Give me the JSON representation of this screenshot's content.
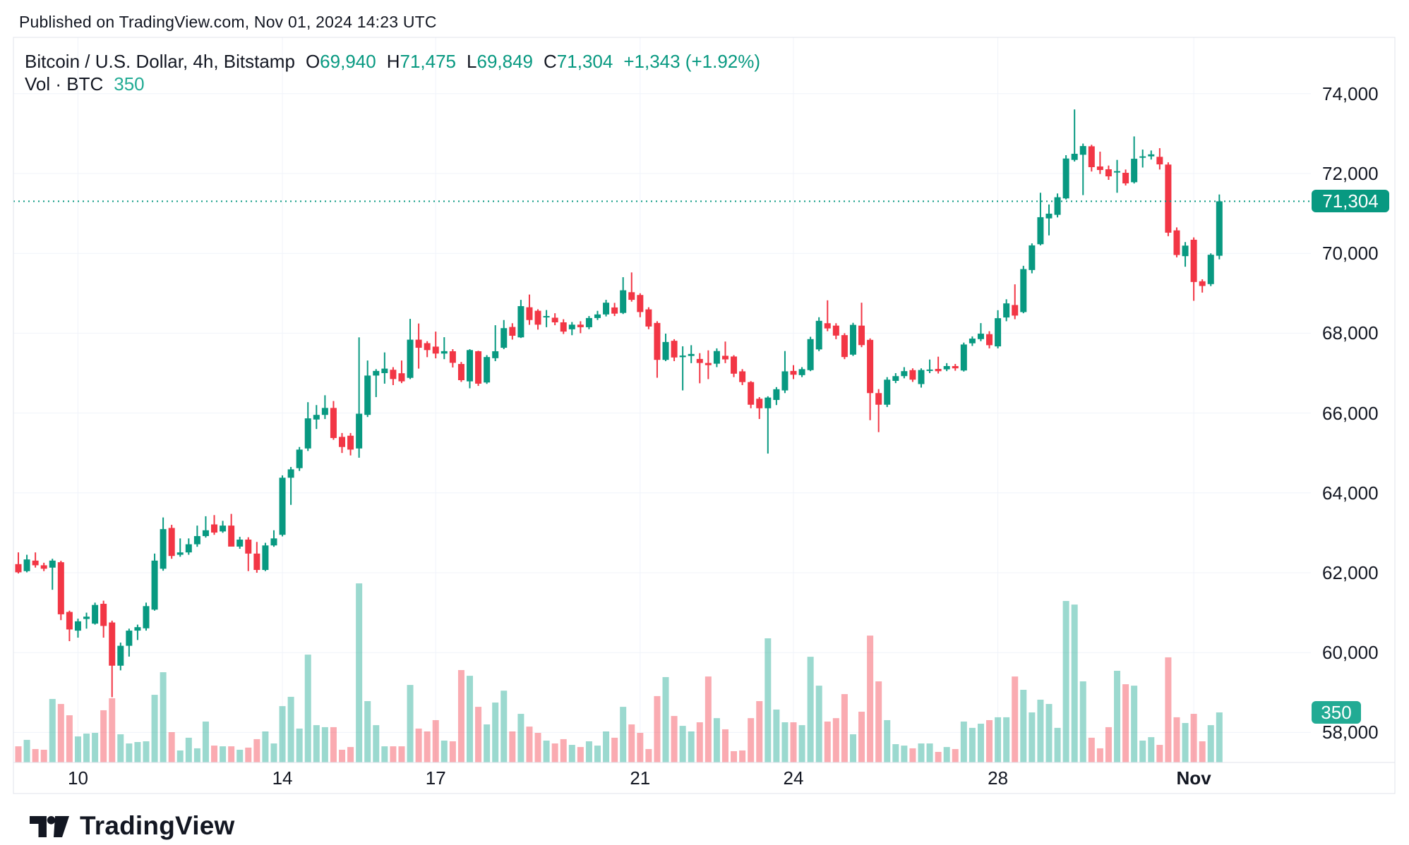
{
  "header": {
    "published_line": "Published on TradingView.com, Nov 01, 2024 14:23 UTC"
  },
  "legend": {
    "title": "Bitcoin / U.S. Dollar, 4h, Bitstamp",
    "o_label": "O",
    "o_value": "69,940",
    "h_label": "H",
    "h_value": "71,475",
    "l_label": "L",
    "l_value": "69,849",
    "c_label": "C",
    "c_value": "71,304",
    "change": "+1,343 (+1.92%)",
    "vol_label": "Vol · BTC",
    "vol_value": "350"
  },
  "axis_badges": {
    "price": "71,304",
    "volume": "350"
  },
  "footer": {
    "brand": "TradingView"
  },
  "theme": {
    "up": "#089981",
    "down": "#F23645",
    "up_volume": "rgba(34,171,148,0.45)",
    "down_volume": "rgba(242,54,69,0.42)",
    "grid": "#F0F3FA",
    "frame": "#E0E3EB",
    "text": "#131722",
    "price_line": "#089981",
    "volume_accent": "#22ab94"
  },
  "chart_data": {
    "type": "candlestick+volume",
    "title": "Bitcoin / U.S. Dollar",
    "interval": "4h",
    "exchange": "Bitstamp",
    "last_price": 71304,
    "last_volume_btc": 350,
    "price_axis": {
      "min": 57000,
      "max": 74600,
      "ticks": [
        {
          "value": 74000,
          "label": "74,000"
        },
        {
          "value": 72000,
          "label": "72,000"
        },
        {
          "value": 70000,
          "label": "70,000"
        },
        {
          "value": 68000,
          "label": "68,000"
        },
        {
          "value": 66000,
          "label": "66,000"
        },
        {
          "value": 64000,
          "label": "64,000"
        },
        {
          "value": 62000,
          "label": "62,000"
        },
        {
          "value": 60000,
          "label": "60,000"
        },
        {
          "value": 58000,
          "label": "58,000"
        }
      ]
    },
    "time_axis": {
      "ticks": [
        {
          "label": "10",
          "candle_index": 7,
          "bold": false
        },
        {
          "label": "14",
          "candle_index": 31,
          "bold": false
        },
        {
          "label": "17",
          "candle_index": 49,
          "bold": false
        },
        {
          "label": "21",
          "candle_index": 73,
          "bold": false
        },
        {
          "label": "24",
          "candle_index": 91,
          "bold": false
        },
        {
          "label": "28",
          "candle_index": 115,
          "bold": false
        },
        {
          "label": "Nov",
          "candle_index": 138,
          "bold": true
        }
      ]
    },
    "candles_format": [
      "open",
      "high",
      "low",
      "close",
      "volume_btc"
    ],
    "candles": [
      [
        62216,
        62510,
        61982,
        62011,
        113
      ],
      [
        62040,
        62450,
        62010,
        62333,
        158
      ],
      [
        62304,
        62509,
        62129,
        62187,
        94
      ],
      [
        62187,
        62250,
        62040,
        62100,
        89
      ],
      [
        62128,
        62350,
        61573,
        62304,
        444
      ],
      [
        62263,
        62300,
        60813,
        60959,
        409
      ],
      [
        61018,
        61050,
        60286,
        60579,
        330
      ],
      [
        60549,
        60850,
        60374,
        60783,
        182
      ],
      [
        60842,
        61000,
        60600,
        60900,
        202
      ],
      [
        60725,
        61251,
        60700,
        61193,
        207
      ],
      [
        61222,
        61300,
        60374,
        60667,
        365
      ],
      [
        60754,
        60800,
        58883,
        59672,
        449
      ],
      [
        59672,
        60250,
        59555,
        60170,
        197
      ],
      [
        60170,
        60600,
        59900,
        60550,
        133
      ],
      [
        60550,
        60700,
        60315,
        60637,
        143
      ],
      [
        60608,
        61251,
        60550,
        61164,
        148
      ],
      [
        61076,
        62480,
        61050,
        62304,
        473
      ],
      [
        62100,
        63385,
        62050,
        63093,
        631
      ],
      [
        63122,
        63200,
        62350,
        62420,
        212
      ],
      [
        62450,
        62860,
        62400,
        62509,
        84
      ],
      [
        62509,
        62860,
        62450,
        62713,
        173
      ],
      [
        62713,
        63181,
        62650,
        62918,
        99
      ],
      [
        62918,
        63415,
        62880,
        63064,
        286
      ],
      [
        63210,
        63444,
        62950,
        63006,
        118
      ],
      [
        63035,
        63300,
        63000,
        63181,
        113
      ],
      [
        63181,
        63474,
        62950,
        62655,
        113
      ],
      [
        62655,
        62900,
        62600,
        62830,
        89
      ],
      [
        62830,
        62889,
        62041,
        62480,
        104
      ],
      [
        62480,
        62772,
        62000,
        62070,
        163
      ],
      [
        62070,
        62750,
        62041,
        62684,
        217
      ],
      [
        62684,
        63064,
        62650,
        62860,
        133
      ],
      [
        62950,
        64439,
        62910,
        64380,
        394
      ],
      [
        64380,
        64650,
        63700,
        64590,
        459
      ],
      [
        64620,
        65150,
        64550,
        65084,
        237
      ],
      [
        65113,
        66272,
        65050,
        65867,
        754
      ],
      [
        65838,
        66200,
        65600,
        65954,
        261
      ],
      [
        65954,
        66446,
        65850,
        66128,
        247
      ],
      [
        66128,
        66301,
        65330,
        65374,
        247
      ],
      [
        65403,
        65500,
        65000,
        65150,
        89
      ],
      [
        65432,
        65500,
        64939,
        65084,
        108
      ],
      [
        65113,
        67896,
        64881,
        65983,
        1252
      ],
      [
        65954,
        67316,
        65900,
        66939,
        429
      ],
      [
        66939,
        67100,
        66400,
        67055,
        261
      ],
      [
        67000,
        67519,
        66736,
        67113,
        113
      ],
      [
        67084,
        67150,
        66700,
        66852,
        113
      ],
      [
        66997,
        67316,
        66750,
        66794,
        113
      ],
      [
        66881,
        68359,
        66850,
        67838,
        542
      ],
      [
        67838,
        68243,
        67113,
        67635,
        237
      ],
      [
        67751,
        67800,
        67400,
        67577,
        217
      ],
      [
        67664,
        68040,
        67370,
        67490,
        296
      ],
      [
        67490,
        67900,
        67350,
        67550,
        153
      ],
      [
        67548,
        67600,
        67142,
        67258,
        148
      ],
      [
        67229,
        67280,
        66780,
        66823,
        646
      ],
      [
        66794,
        67600,
        66620,
        67577,
        606
      ],
      [
        67548,
        67560,
        66680,
        66736,
        389
      ],
      [
        66765,
        67450,
        66730,
        67403,
        266
      ],
      [
        67374,
        68200,
        67300,
        67548,
        419
      ],
      [
        67635,
        68330,
        67600,
        68127,
        502
      ],
      [
        68156,
        68250,
        67840,
        67936,
        217
      ],
      [
        67896,
        68835,
        67880,
        68678,
        340
      ],
      [
        68649,
        68968,
        68210,
        68330,
        251
      ],
      [
        68562,
        68600,
        68090,
        68214,
        207
      ],
      [
        68400,
        68580,
        68150,
        68430,
        153
      ],
      [
        68388,
        68500,
        68200,
        68272,
        133
      ],
      [
        68272,
        68350,
        67980,
        68040,
        163
      ],
      [
        68098,
        68280,
        67950,
        68214,
        123
      ],
      [
        68214,
        68300,
        68000,
        68150,
        108
      ],
      [
        68150,
        68430,
        68100,
        68380,
        148
      ],
      [
        68380,
        68560,
        68330,
        68470,
        118
      ],
      [
        68470,
        68836,
        68420,
        68764,
        217
      ],
      [
        68645,
        68760,
        68430,
        68490,
        173
      ],
      [
        68508,
        69403,
        68480,
        69075,
        389
      ],
      [
        69027,
        69522,
        68790,
        68836,
        266
      ],
      [
        68957,
        69000,
        68400,
        68530,
        207
      ],
      [
        68597,
        68650,
        68100,
        68167,
        94
      ],
      [
        68257,
        68300,
        66884,
        67332,
        464
      ],
      [
        67332,
        67989,
        67300,
        67780,
        597
      ],
      [
        67810,
        67850,
        67300,
        67392,
        325
      ],
      [
        67400,
        67672,
        66567,
        67440,
        256
      ],
      [
        67430,
        67700,
        67250,
        67480,
        217
      ],
      [
        67355,
        67500,
        66746,
        67254,
        281
      ],
      [
        67254,
        67570,
        66850,
        67200,
        601
      ],
      [
        67236,
        67620,
        67150,
        67553,
        310
      ],
      [
        67434,
        67791,
        67250,
        67344,
        232
      ],
      [
        67416,
        67450,
        66900,
        66986,
        79
      ],
      [
        67045,
        67100,
        66700,
        66776,
        84
      ],
      [
        66776,
        66800,
        66120,
        66209,
        310
      ],
      [
        66358,
        66400,
        65851,
        66120,
        429
      ],
      [
        66120,
        66420,
        64985,
        66388,
        868
      ],
      [
        66328,
        66650,
        66200,
        66597,
        370
      ],
      [
        66567,
        67553,
        66500,
        67045,
        281
      ],
      [
        67055,
        67200,
        66850,
        66960,
        281
      ],
      [
        66950,
        67150,
        66900,
        67100,
        261
      ],
      [
        67075,
        67911,
        67050,
        67852,
        739
      ],
      [
        67594,
        68400,
        67550,
        68310,
        537
      ],
      [
        68250,
        68824,
        68050,
        68120,
        286
      ],
      [
        68190,
        68250,
        67850,
        67940,
        310
      ],
      [
        67952,
        68000,
        67350,
        67403,
        478
      ],
      [
        67463,
        68260,
        67430,
        68209,
        197
      ],
      [
        68190,
        68764,
        67650,
        67702,
        355
      ],
      [
        67833,
        67870,
        65821,
        66500,
        887
      ],
      [
        66500,
        66600,
        65522,
        66209,
        567
      ],
      [
        66209,
        66900,
        66150,
        66836,
        296
      ],
      [
        66806,
        67000,
        66750,
        66925,
        128
      ],
      [
        66925,
        67150,
        66870,
        67050,
        118
      ],
      [
        67075,
        67120,
        66780,
        66836,
        99
      ],
      [
        66726,
        67120,
        66637,
        67078,
        133
      ],
      [
        67078,
        67341,
        67000,
        67090,
        133
      ],
      [
        67106,
        67412,
        66990,
        67048,
        74
      ],
      [
        67095,
        67250,
        67050,
        67177,
        108
      ],
      [
        67177,
        67230,
        67060,
        67120,
        94
      ],
      [
        67066,
        67765,
        67040,
        67717,
        286
      ],
      [
        67747,
        67920,
        67680,
        67865,
        242
      ],
      [
        67852,
        68253,
        67800,
        67988,
        271
      ],
      [
        67976,
        68050,
        67620,
        67700,
        296
      ],
      [
        67670,
        68576,
        67620,
        68376,
        316
      ],
      [
        68394,
        68850,
        68300,
        68747,
        316
      ],
      [
        68706,
        69224,
        68350,
        68441,
        601
      ],
      [
        68529,
        69688,
        68500,
        69606,
        508
      ],
      [
        69583,
        70250,
        69500,
        70200,
        350
      ],
      [
        70229,
        71518,
        70200,
        70906,
        439
      ],
      [
        70876,
        71224,
        70450,
        70994,
        409
      ],
      [
        70965,
        71500,
        70900,
        71406,
        242
      ],
      [
        71377,
        72459,
        71350,
        72376,
        1129
      ],
      [
        72341,
        73605,
        72300,
        72494,
        1104
      ],
      [
        72470,
        72750,
        71459,
        72688,
        567
      ],
      [
        72682,
        72720,
        72050,
        72159,
        173
      ],
      [
        72176,
        72547,
        71988,
        72088,
        99
      ],
      [
        72106,
        72200,
        71841,
        71929,
        247
      ],
      [
        72030,
        72341,
        71518,
        72060,
        641
      ],
      [
        72018,
        72100,
        71700,
        71753,
        547
      ],
      [
        71782,
        72929,
        71750,
        72370,
        537
      ],
      [
        72400,
        72600,
        72150,
        72430,
        153
      ],
      [
        72430,
        72576,
        72350,
        72480,
        177
      ],
      [
        72418,
        72635,
        72100,
        72229,
        123
      ],
      [
        72224,
        72280,
        70430,
        70518,
        735
      ],
      [
        70576,
        70650,
        69900,
        69959,
        316
      ],
      [
        69930,
        70283,
        69665,
        70194,
        276
      ],
      [
        70341,
        70400,
        68812,
        69283,
        340
      ],
      [
        69301,
        69350,
        69018,
        69183,
        148
      ],
      [
        69230,
        70000,
        69180,
        69965,
        261
      ],
      [
        69940,
        71475,
        69849,
        71304,
        350
      ]
    ]
  }
}
